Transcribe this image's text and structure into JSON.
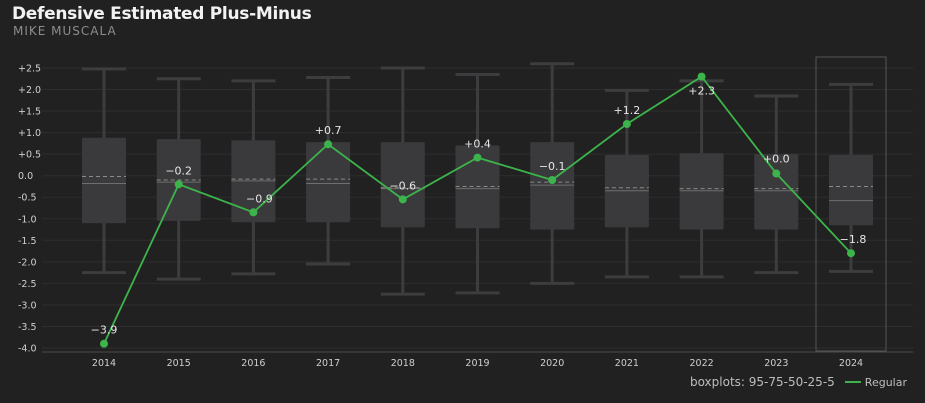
{
  "header": {
    "title": "Defensive Estimated Plus-Minus",
    "subtitle": "MIKE MUSCALA"
  },
  "footer": {
    "boxplot_note": "boxplots: 95-75-50-25-5",
    "legend_label": "Regular"
  },
  "colors": {
    "background": "#212121",
    "box": "#3a3a3c",
    "whisker": "#3d3d3f",
    "median": "#6e6e6e",
    "mean": "#8a8a8a",
    "grid": "#2e2e2e",
    "axis_text": "#cfcfcf",
    "line": "#3cb44b",
    "highlight_border": "#555555"
  },
  "chart_data": {
    "type": "line",
    "title": "Defensive Estimated Plus-Minus",
    "subtitle": "MIKE MUSCALA",
    "xlabel": "",
    "ylabel": "",
    "ylim": [
      -4.0,
      2.5
    ],
    "yticks": [
      "+2.5",
      "+2.0",
      "+1.5",
      "+1.0",
      "+0.5",
      "0.0",
      "-0.5",
      "-1.0",
      "-1.5",
      "-2.0",
      "-2.5",
      "-3.0",
      "-3.5",
      "-4.0"
    ],
    "categories": [
      "2014",
      "2015",
      "2016",
      "2017",
      "2018",
      "2019",
      "2020",
      "2021",
      "2022",
      "2023",
      "2024"
    ],
    "highlighted_category": "2024",
    "series": [
      {
        "name": "Regular",
        "values": [
          -3.9,
          -0.2,
          -0.85,
          0.73,
          -0.55,
          0.42,
          -0.1,
          1.2,
          2.3,
          0.05,
          -1.8
        ],
        "labels": [
          "−3.9",
          "−0.2",
          "−0.9",
          "+0.7",
          "−0.6",
          "+0.4",
          "−0.1",
          "+1.2",
          "+2.3",
          "+0.0",
          "−1.8"
        ]
      }
    ],
    "boxplots": [
      {
        "p5": -2.25,
        "p25": -1.1,
        "p50": -0.18,
        "p75": 0.88,
        "p95": 2.48,
        "mean": -0.02
      },
      {
        "p5": -2.4,
        "p25": -1.05,
        "p50": -0.15,
        "p75": 0.85,
        "p95": 2.25,
        "mean": -0.1
      },
      {
        "p5": -2.28,
        "p25": -1.08,
        "p50": -0.12,
        "p75": 0.82,
        "p95": 2.2,
        "mean": -0.08
      },
      {
        "p5": -2.05,
        "p25": -1.08,
        "p50": -0.18,
        "p75": 0.78,
        "p95": 2.28,
        "mean": -0.08
      },
      {
        "p5": -2.75,
        "p25": -1.2,
        "p50": -0.3,
        "p75": 0.78,
        "p95": 2.5,
        "mean": -0.28
      },
      {
        "p5": -2.72,
        "p25": -1.22,
        "p50": -0.3,
        "p75": 0.7,
        "p95": 2.35,
        "mean": -0.25
      },
      {
        "p5": -2.5,
        "p25": -1.25,
        "p50": -0.22,
        "p75": 0.78,
        "p95": 2.6,
        "mean": -0.15
      },
      {
        "p5": -2.35,
        "p25": -1.2,
        "p50": -0.35,
        "p75": 0.48,
        "p95": 1.98,
        "mean": -0.28
      },
      {
        "p5": -2.35,
        "p25": -1.25,
        "p50": -0.35,
        "p75": 0.52,
        "p95": 2.2,
        "mean": -0.3
      },
      {
        "p5": -2.25,
        "p25": -1.25,
        "p50": -0.35,
        "p75": 0.5,
        "p95": 1.85,
        "mean": -0.3
      },
      {
        "p5": -2.22,
        "p25": -1.15,
        "p50": -0.58,
        "p75": 0.48,
        "p95": 2.12,
        "mean": -0.25
      }
    ]
  }
}
